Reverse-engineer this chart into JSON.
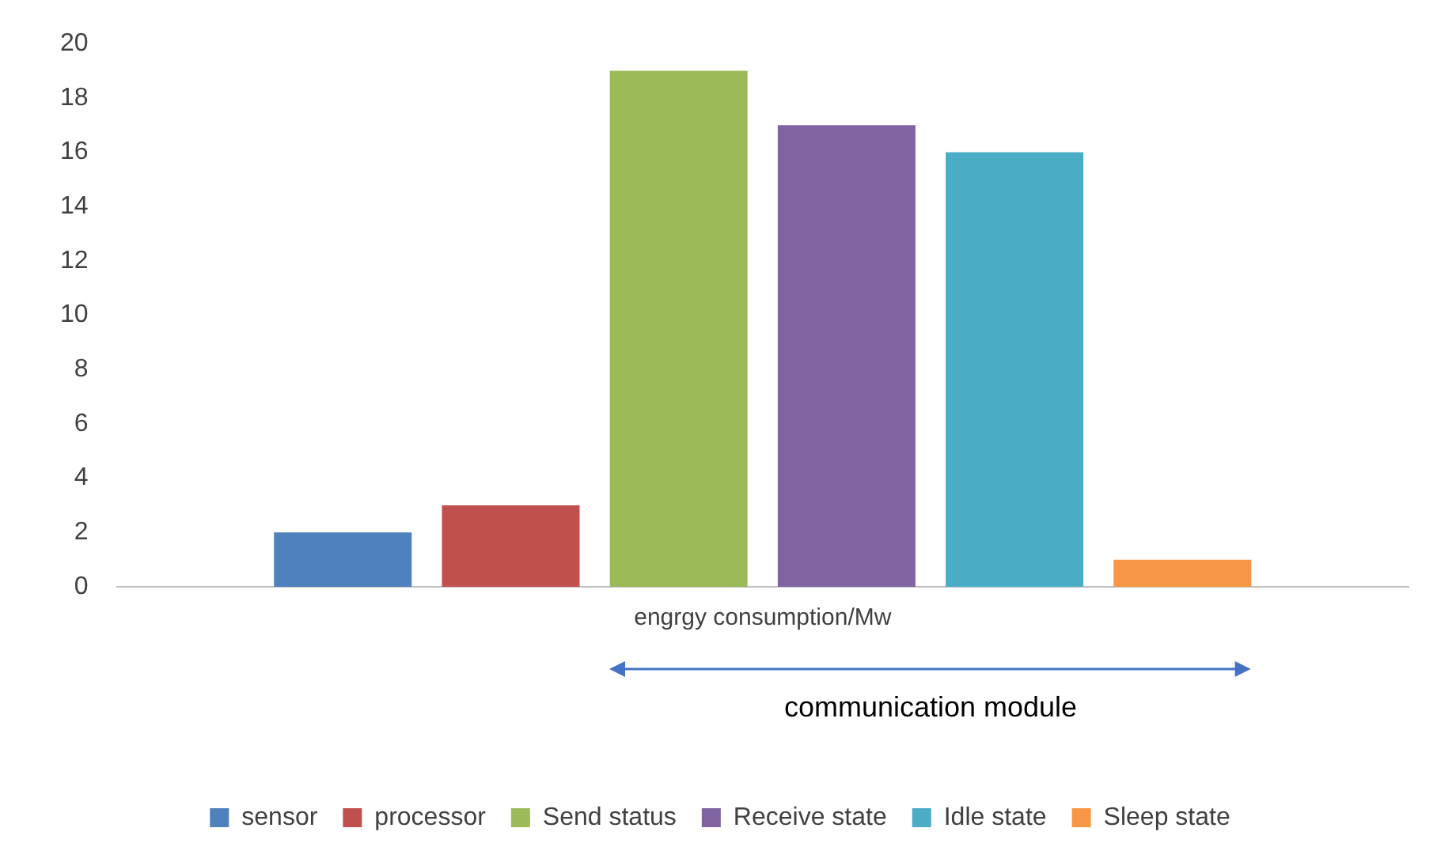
{
  "chart_data": {
    "type": "bar",
    "categories": [
      "engrgy consumption/Mw"
    ],
    "series": [
      {
        "name": "sensor",
        "color": "#4f81bd",
        "values": [
          2
        ]
      },
      {
        "name": "processor",
        "color": "#c0504d",
        "values": [
          3
        ]
      },
      {
        "name": "Send status",
        "color": "#9bbb59",
        "values": [
          19
        ]
      },
      {
        "name": "Receive state",
        "color": "#8064a2",
        "values": [
          17
        ]
      },
      {
        "name": "Idle state",
        "color": "#4bacc6",
        "values": [
          16
        ]
      },
      {
        "name": "Sleep state",
        "color": "#f79646",
        "values": [
          1
        ]
      }
    ],
    "ylim": [
      0,
      20
    ],
    "yticks": [
      0,
      2,
      4,
      6,
      8,
      10,
      12,
      14,
      16,
      18,
      20
    ],
    "grid": false,
    "legend": "bottom",
    "annotations": [
      "communication module"
    ]
  }
}
